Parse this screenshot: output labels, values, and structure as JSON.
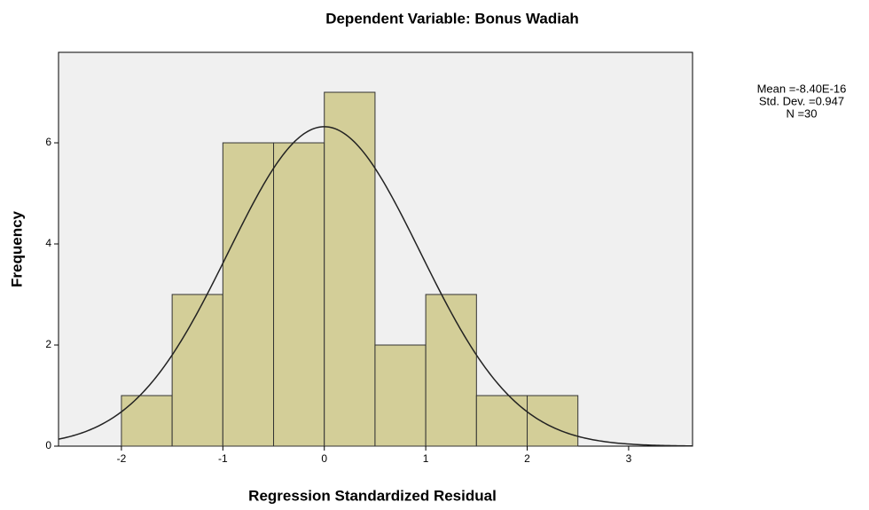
{
  "chart_data": {
    "type": "histogram",
    "title": "Dependent Variable: Bonus Wadiah",
    "x_label": "Regression Standardized Residual",
    "y_label": "Frequency",
    "bins": [
      -2,
      -1.5,
      -1,
      -0.5,
      0,
      0.5,
      1,
      1.5,
      2,
      2.5
    ],
    "values": [
      1,
      3,
      6,
      6,
      7,
      2,
      3,
      1,
      1
    ],
    "color": "#d3ce98",
    "xlim": [
      -2.62,
      3.63
    ],
    "xticks": [
      -2,
      -1,
      0,
      1,
      2,
      3
    ],
    "ylim": [
      0,
      7.79
    ],
    "yticks": [
      0,
      2,
      4,
      6
    ],
    "stats": {
      "mean": -8.4e-16,
      "std_dev": 0.947,
      "n": 30
    },
    "stats_labels": [
      "Mean =-8.40E-16",
      "Std. Dev. =0.947",
      "N =30"
    ]
  }
}
